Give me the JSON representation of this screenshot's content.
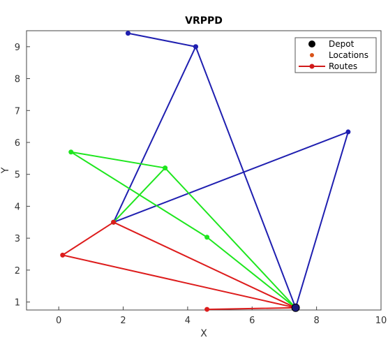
{
  "chart_data": {
    "type": "line",
    "title": "VRPPD",
    "xlabel": "X",
    "ylabel": "Y",
    "xlim": [
      -1,
      10
    ],
    "ylim": [
      0.75,
      9.5
    ],
    "x_ticks": [
      "0",
      "2",
      "4",
      "6",
      "8",
      "10"
    ],
    "y_ticks": [
      "1",
      "2",
      "3",
      "4",
      "5",
      "6",
      "7",
      "8",
      "9"
    ],
    "legend": {
      "placement": "top-right",
      "entries": [
        "Depot",
        "Locations",
        "Routes"
      ]
    },
    "depot": {
      "x": 7.35,
      "y": 0.82
    },
    "series": [
      {
        "color": "#1f1fb0",
        "points": [
          [
            7.35,
            0.82
          ],
          [
            4.25,
            9.0
          ],
          [
            2.15,
            9.42
          ],
          [
            4.25,
            9.0
          ],
          [
            1.7,
            3.5
          ],
          [
            8.98,
            6.33
          ],
          [
            7.35,
            0.82
          ]
        ]
      },
      {
        "color": "#1ee61e",
        "points": [
          [
            7.35,
            0.82
          ],
          [
            4.6,
            3.03
          ],
          [
            0.38,
            5.7
          ],
          [
            3.3,
            5.2
          ],
          [
            1.7,
            3.5
          ],
          [
            3.3,
            5.2
          ],
          [
            7.35,
            0.82
          ]
        ]
      },
      {
        "color": "#dd1c1c",
        "points": [
          [
            7.35,
            0.82
          ],
          [
            4.6,
            0.77
          ],
          [
            7.35,
            0.82
          ],
          [
            1.7,
            3.5
          ],
          [
            0.12,
            2.47
          ],
          [
            7.35,
            0.82
          ]
        ]
      }
    ]
  }
}
